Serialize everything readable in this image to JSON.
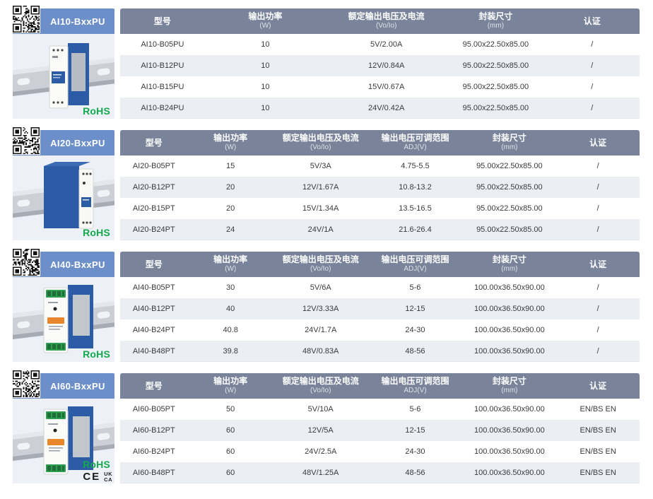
{
  "colors": {
    "series_header_bg": "#6c8fc9",
    "table_header_bg": "#79849a",
    "table_header_text": "#ffffff",
    "row_alt_bg": "#ebeef3",
    "panel_bg": "#edf0f7",
    "rohs_green": "#12a94b",
    "cell_text": "#3a3a3e",
    "device_blue": "#2d5ca6",
    "terminal_green": "#2f9e50"
  },
  "sections": [
    {
      "id": "AI10",
      "title": "AI10-BxxPU",
      "rohs_label": "RoHS",
      "columns": [
        {
          "label": "型号",
          "sub": ""
        },
        {
          "label": "输出功率",
          "sub": "(W)"
        },
        {
          "label": "额定输出电压及电流",
          "sub": "(Vo/Io)"
        },
        {
          "label": "封装尺寸",
          "sub": "(mm)"
        },
        {
          "label": "认证",
          "sub": ""
        }
      ],
      "rows": [
        [
          "AI10-B05PU",
          "10",
          "5V/2.00A",
          "95.00x22.50x85.00",
          "/"
        ],
        [
          "AI10-B12PU",
          "10",
          "12V/0.84A",
          "95.00x22.50x85.00",
          "/"
        ],
        [
          "AI10-B15PU",
          "10",
          "15V/0.67A",
          "95.00x22.50x85.00",
          "/"
        ],
        [
          "AI10-B24PU",
          "10",
          "24V/0.42A",
          "95.00x22.50x85.00",
          "/"
        ]
      ]
    },
    {
      "id": "AI20",
      "title": "AI20-BxxPU",
      "rohs_label": "RoHS",
      "columns": [
        {
          "label": "型号",
          "sub": ""
        },
        {
          "label": "输出功率",
          "sub": "(W)"
        },
        {
          "label": "额定输出电压及电流",
          "sub": "(Vo/Io)"
        },
        {
          "label": "输出电压可调范围",
          "sub": "ADJ(V)"
        },
        {
          "label": "封装尺寸",
          "sub": "(mm)"
        },
        {
          "label": "认证",
          "sub": ""
        }
      ],
      "rows": [
        [
          "AI20-B05PT",
          "15",
          "5V/3A",
          "4.75-5.5",
          "95.00x22.50x85.00",
          "/"
        ],
        [
          "AI20-B12PT",
          "20",
          "12V/1.67A",
          "10.8-13.2",
          "95.00x22.50x85.00",
          "/"
        ],
        [
          "AI20-B15PT",
          "20",
          "15V/1.34A",
          "13.5-16.5",
          "95.00x22.50x85.00",
          "/"
        ],
        [
          "AI20-B24PT",
          "24",
          "24V/1A",
          "21.6-26.4",
          "95.00x22.50x85.00",
          "/"
        ]
      ]
    },
    {
      "id": "AI40",
      "title": "AI40-BxxPU",
      "rohs_label": "RoHS",
      "columns": [
        {
          "label": "型号",
          "sub": ""
        },
        {
          "label": "输出功率",
          "sub": "(W)"
        },
        {
          "label": "额定输出电压及电流",
          "sub": "(Vo/Io)"
        },
        {
          "label": "输出电压可调范围",
          "sub": "ADJ(V)"
        },
        {
          "label": "封装尺寸",
          "sub": "(mm)"
        },
        {
          "label": "认证",
          "sub": ""
        }
      ],
      "rows": [
        [
          "AI40-B05PT",
          "30",
          "5V/6A",
          "5-6",
          "100.00x36.50x90.00",
          "/"
        ],
        [
          "AI40-B12PT",
          "40",
          "12V/3.33A",
          "12-15",
          "100.00x36.50x90.00",
          "/"
        ],
        [
          "AI40-B24PT",
          "40.8",
          "24V/1.7A",
          "24-30",
          "100.00x36.50x90.00",
          "/"
        ],
        [
          "AI40-B48PT",
          "39.8",
          "48V/0.83A",
          "48-56",
          "100.00x36.50x90.00",
          "/"
        ]
      ]
    },
    {
      "id": "AI60",
      "title": "AI60-BxxPU",
      "rohs_label": "RoHS",
      "ce_mark": "CE",
      "ukca_mark": [
        "UK",
        "CA"
      ],
      "columns": [
        {
          "label": "型号",
          "sub": ""
        },
        {
          "label": "输出功率",
          "sub": "(W)"
        },
        {
          "label": "额定输出电压及电流",
          "sub": "(Vo/Io)"
        },
        {
          "label": "输出电压可调范围",
          "sub": "ADJ(V)"
        },
        {
          "label": "封装尺寸",
          "sub": "(mm)"
        },
        {
          "label": "认证",
          "sub": ""
        }
      ],
      "rows": [
        [
          "AI60-B05PT",
          "50",
          "5V/10A",
          "5-6",
          "100.00x36.50x90.00",
          "EN/BS EN"
        ],
        [
          "AI60-B12PT",
          "60",
          "12V/5A",
          "12-15",
          "100.00x36.50x90.00",
          "EN/BS EN"
        ],
        [
          "AI60-B24PT",
          "60",
          "24V/2.5A",
          "24-30",
          "100.00x36.50x90.00",
          "EN/BS EN"
        ],
        [
          "AI60-B48PT",
          "60",
          "48V/1.25A",
          "48-56",
          "100.00x36.50x90.00",
          "EN/BS EN"
        ]
      ]
    }
  ]
}
